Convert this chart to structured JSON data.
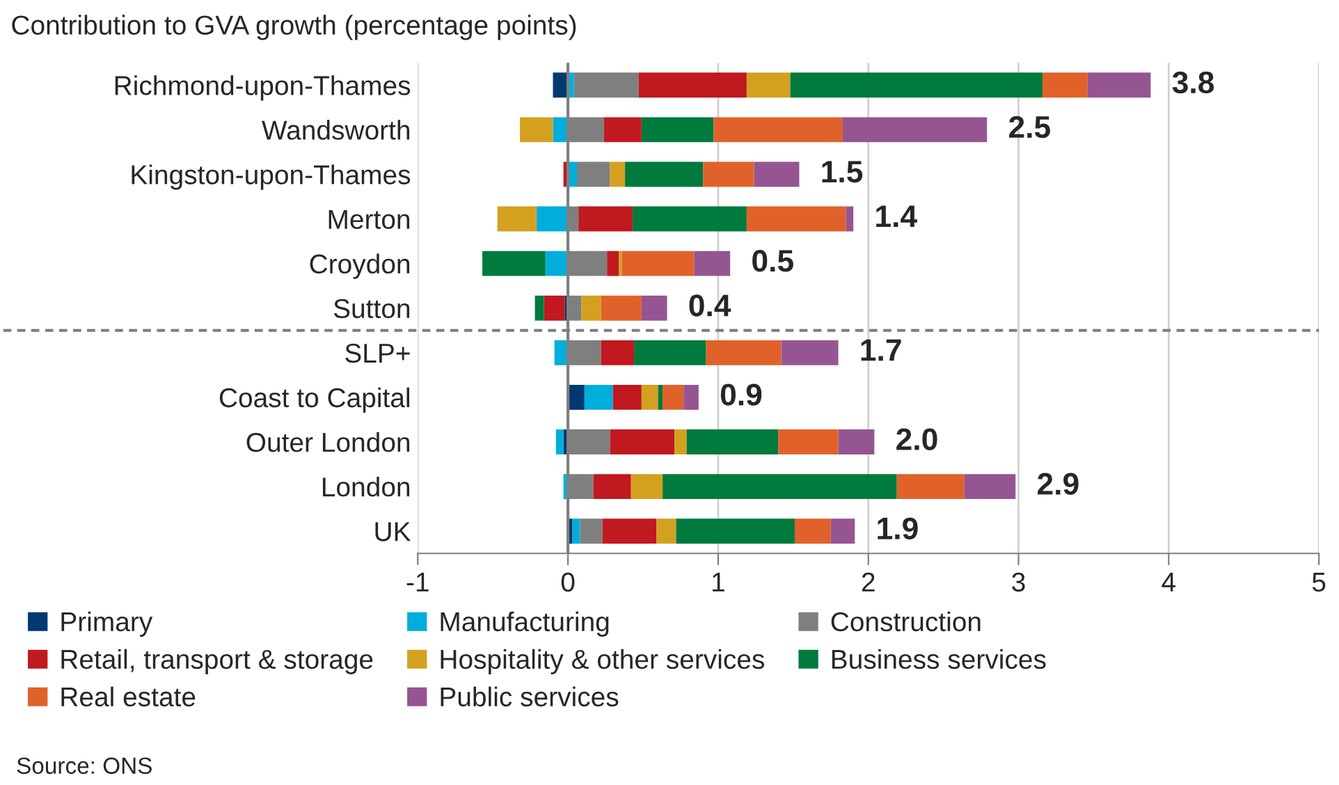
{
  "chart_data": {
    "type": "bar",
    "orientation": "horizontal",
    "stacked": true,
    "title": "Contribution to GVA growth (percentage points)",
    "categories": [
      "Richmond-upon-Thames",
      "Wandsworth",
      "Kingston-upon-Thames",
      "Merton",
      "Croydon",
      "Sutton",
      "SLP+",
      "Coast to Capital",
      "Outer London",
      "London",
      "UK"
    ],
    "series": [
      {
        "name": "Primary",
        "color": "#003a70",
        "values": [
          -0.1,
          null,
          null,
          null,
          -0.01,
          -0.02,
          -0.01,
          0.11,
          -0.03,
          null,
          0.03
        ]
      },
      {
        "name": "Manufacturing",
        "color": "#00aedb",
        "values": [
          0.04,
          -0.1,
          0.06,
          -0.21,
          -0.14,
          null,
          -0.08,
          0.19,
          -0.05,
          -0.03,
          0.05
        ]
      },
      {
        "name": "Construction",
        "color": "#7f7f7f",
        "values": [
          0.43,
          0.24,
          0.22,
          0.07,
          0.26,
          0.09,
          0.22,
          null,
          0.28,
          0.17,
          0.15
        ]
      },
      {
        "name": "Retail, transport & storage",
        "color": "#c0191f",
        "values": [
          0.72,
          0.25,
          -0.03,
          0.36,
          0.08,
          -0.14,
          0.22,
          0.19,
          0.43,
          0.25,
          0.36
        ]
      },
      {
        "name": "Hospitality & other services",
        "color": "#d4a020",
        "values": [
          0.29,
          -0.22,
          0.1,
          -0.26,
          0.02,
          0.13,
          null,
          0.11,
          0.08,
          0.21,
          0.13
        ]
      },
      {
        "name": "Business services",
        "color": "#007a3d",
        "values": [
          1.68,
          0.48,
          0.52,
          0.76,
          -0.42,
          -0.06,
          0.48,
          0.03,
          0.61,
          1.56,
          0.79
        ]
      },
      {
        "name": "Real estate",
        "color": "#e0622a",
        "values": [
          0.3,
          0.86,
          0.34,
          0.66,
          0.48,
          0.27,
          0.5,
          0.14,
          0.4,
          0.45,
          0.24
        ]
      },
      {
        "name": "Public services",
        "color": "#955592",
        "values": [
          0.42,
          0.96,
          0.3,
          0.05,
          0.24,
          0.17,
          0.38,
          0.1,
          0.24,
          0.34,
          0.16
        ]
      }
    ],
    "totals": [
      "3.8",
      "2.5",
      "1.5",
      "1.4",
      "0.5",
      "0.4",
      "1.7",
      "0.9",
      "2.0",
      "2.9",
      "1.9"
    ],
    "xlim": [
      -1,
      5
    ],
    "xticks": [
      -1,
      0,
      1,
      2,
      3,
      4,
      5
    ],
    "grid": "x",
    "legend": "bottom",
    "ref_lines": [
      {
        "axis": "x",
        "value": 0,
        "color": "#7f7f7f",
        "line_style": "solid"
      }
    ],
    "annotations": [
      "Source: ONS"
    ]
  }
}
